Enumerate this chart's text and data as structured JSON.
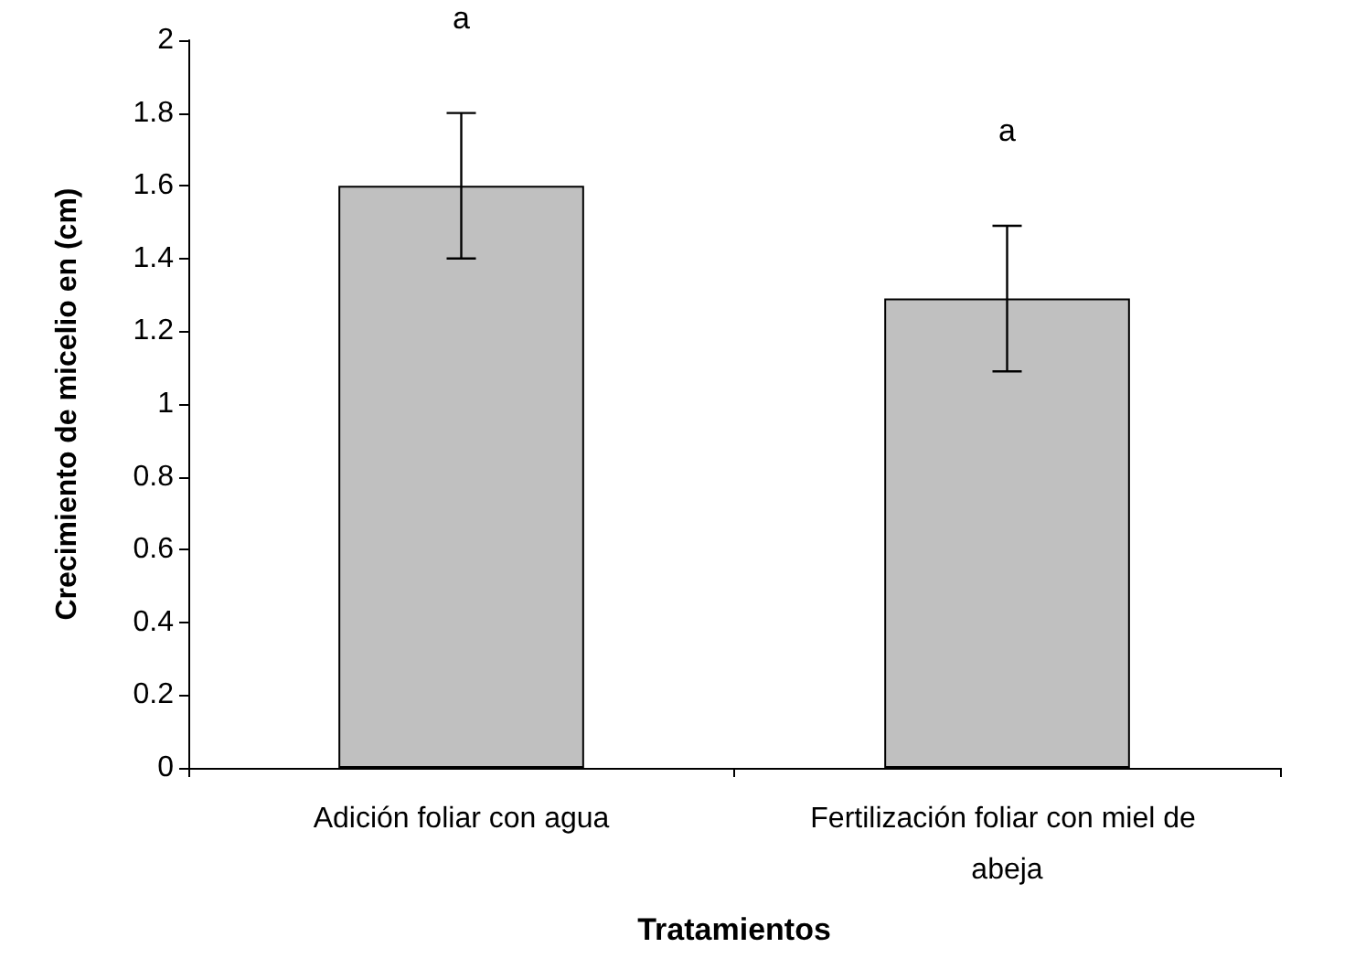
{
  "chart_data": {
    "type": "bar",
    "xlabel": "Tratamientos",
    "ylabel": "Crecimiento de micelio en (cm)",
    "categories": [
      "Adición foliar con agua",
      "Fertilización foliar con miel de abeja"
    ],
    "values": [
      1.6,
      1.29
    ],
    "color": "#c0c0c0",
    "errors": [
      0.2,
      0.2
    ],
    "ylim": [
      0,
      2
    ],
    "yticks": [
      0,
      0.2,
      0.4,
      0.6,
      0.8,
      1,
      1.2,
      1.4,
      1.6,
      1.8,
      2
    ],
    "grid": false,
    "annotations": [
      "a",
      "a"
    ]
  }
}
